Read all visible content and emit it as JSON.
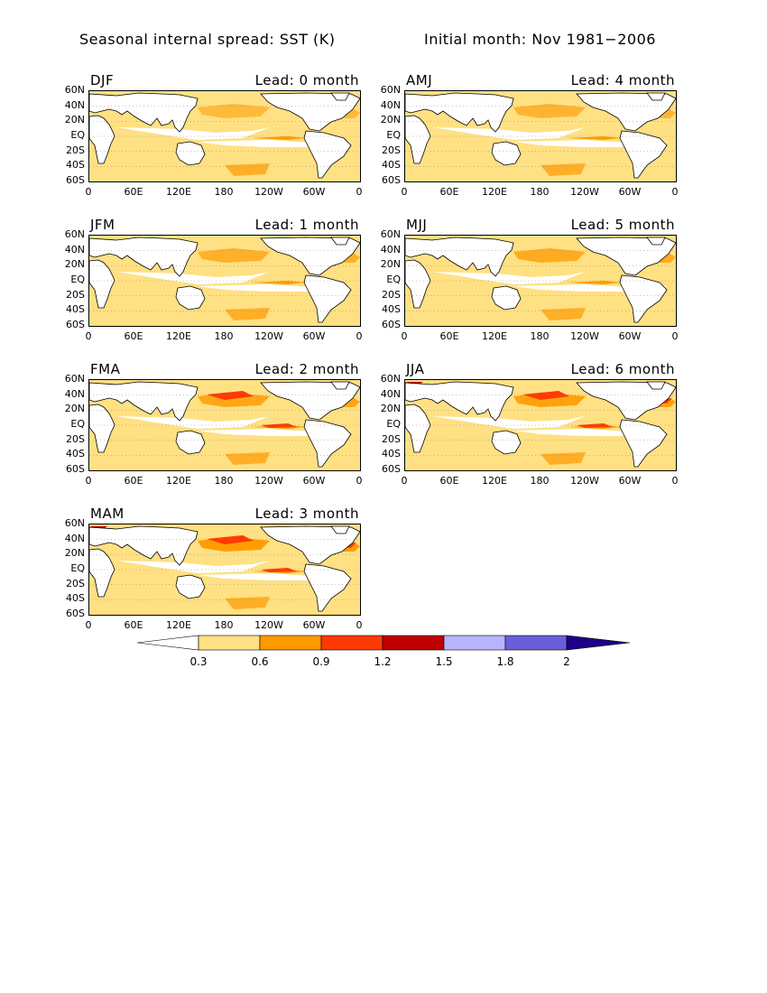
{
  "header": {
    "title_left": "Seasonal internal spread: SST (K)",
    "title_right": "Initial month: Nov 1981−2006"
  },
  "colors": {
    "land": "#ffffff",
    "levels": [
      "#ffffff",
      "#ffe082",
      "#ff9a00",
      "#ff3a00",
      "#c00000",
      "#b8b4ff",
      "#6a5ed8",
      "#1e0088"
    ]
  },
  "map_axes": {
    "lat_ticks": [
      "60N",
      "40N",
      "20N",
      "EQ",
      "20S",
      "40S",
      "60S"
    ],
    "lon_ticks": [
      "0",
      "60E",
      "120E",
      "180",
      "120W",
      "60W",
      "0"
    ]
  },
  "panels": [
    {
      "season": "DJF",
      "lead": "Lead: 0 month"
    },
    {
      "season": "AMJ",
      "lead": "Lead: 4 month"
    },
    {
      "season": "JFM",
      "lead": "Lead: 1 month"
    },
    {
      "season": "MJJ",
      "lead": "Lead: 5 month"
    },
    {
      "season": "FMA",
      "lead": "Lead: 2 month"
    },
    {
      "season": "JJA",
      "lead": "Lead: 6 month"
    },
    {
      "season": "MAM",
      "lead": "Lead: 3 month"
    }
  ],
  "colorbar": {
    "labels": [
      "0.3",
      "0.6",
      "0.9",
      "1.2",
      "1.5",
      "1.8",
      "2"
    ]
  }
}
